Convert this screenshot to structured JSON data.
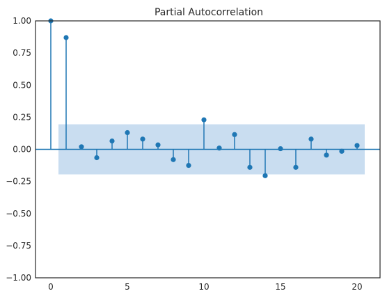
{
  "chart_data": {
    "type": "scatter",
    "subtype": "stem",
    "title": "Partial Autocorrelation",
    "xlabel": "",
    "ylabel": "",
    "xlim": [
      -1,
      21.5
    ],
    "ylim": [
      -1.0,
      1.0
    ],
    "xticks": [
      0,
      5,
      10,
      15,
      20
    ],
    "yticks": [
      -1.0,
      -0.75,
      -0.5,
      -0.25,
      0.0,
      0.25,
      0.5,
      0.75,
      1.0
    ],
    "ytick_labels": [
      "−1.00",
      "−0.75",
      "−0.50",
      "−0.25",
      "0.00",
      "0.25",
      "0.50",
      "0.75",
      "1.00"
    ],
    "xtick_labels": [
      "0",
      "5",
      "10",
      "15",
      "20"
    ],
    "grid": false,
    "series": [
      {
        "x": [
          0,
          1,
          2,
          3,
          4,
          5,
          6,
          7,
          8,
          9,
          10,
          11,
          12,
          13,
          14,
          15,
          16,
          17,
          18,
          19,
          20
        ],
        "values": [
          1.0,
          0.87,
          0.02,
          -0.065,
          0.065,
          0.13,
          0.08,
          0.035,
          -0.08,
          -0.125,
          0.23,
          0.01,
          0.115,
          -0.14,
          -0.205,
          0.005,
          -0.14,
          0.08,
          -0.045,
          -0.015,
          0.03
        ]
      }
    ],
    "confidence_band": {
      "x_start": 0.5,
      "x_end": 20.5,
      "lower": -0.195,
      "upper": 0.195
    },
    "colors": {
      "stem": "#1f77b4",
      "band": "#c6dbef",
      "axes": "#262626"
    }
  }
}
